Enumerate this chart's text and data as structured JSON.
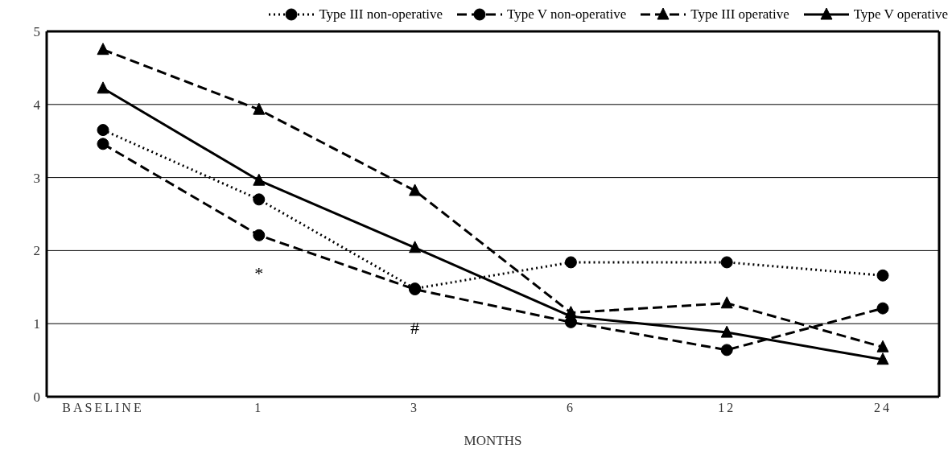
{
  "chart_data": {
    "type": "line",
    "xlabel": "MONTHS",
    "categories": [
      "BASELINE",
      "1",
      "3",
      "6",
      "12",
      "24"
    ],
    "series": [
      {
        "name": "Type III non-operative",
        "color": "#000000",
        "marker": "circle",
        "line_style": "dotted",
        "values": [
          3.65,
          2.7,
          1.48,
          1.84,
          1.84,
          1.66
        ]
      },
      {
        "name": "Type V non-operative",
        "color": "#000000",
        "marker": "circle",
        "line_style": "dashed",
        "values": [
          3.46,
          2.21,
          1.47,
          1.02,
          0.64,
          1.21
        ]
      },
      {
        "name": "Type III operative",
        "color": "#000000",
        "marker": "triangle",
        "line_style": "dashed",
        "values": [
          4.75,
          3.93,
          2.82,
          1.15,
          1.28,
          0.68
        ]
      },
      {
        "name": "Type V operative",
        "color": "#000000",
        "marker": "triangle",
        "line_style": "solid",
        "values": [
          4.22,
          2.96,
          2.04,
          1.1,
          0.88,
          0.51
        ]
      }
    ],
    "ylim": [
      0,
      5
    ],
    "yticks": [
      0,
      1,
      2,
      3,
      4,
      5
    ],
    "grid": "y",
    "legend": "top",
    "annotations": [
      "*",
      "#"
    ]
  }
}
